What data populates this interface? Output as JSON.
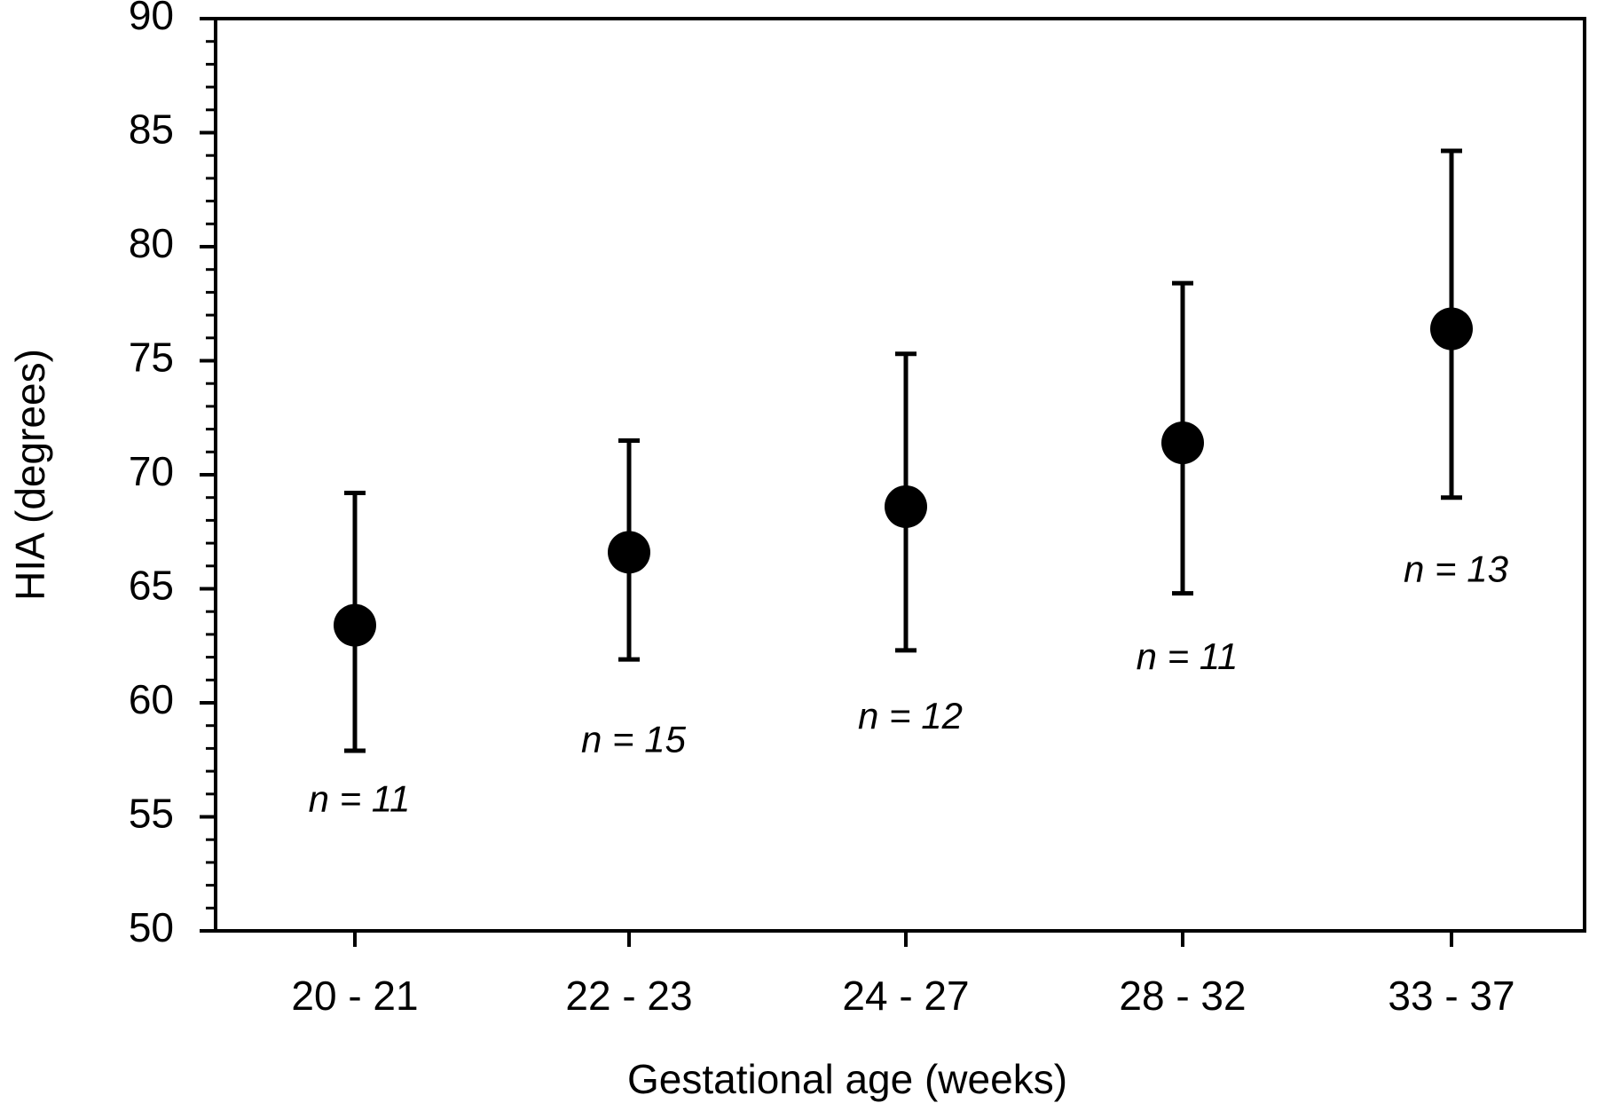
{
  "chart_data": {
    "type": "scatter",
    "title": "",
    "xlabel": "Gestational age (weeks)",
    "ylabel": "HIA  (degrees)",
    "categories": [
      "20 - 21",
      "22 - 23",
      "24 - 27",
      "28 - 32",
      "33 - 37"
    ],
    "series": [
      {
        "values": [
          63.4,
          66.6,
          68.6,
          71.4,
          76.4
        ],
        "error_upper": [
          69.2,
          71.5,
          75.3,
          78.4,
          84.2
        ],
        "error_lower": [
          57.9,
          61.9,
          62.3,
          64.8,
          69.0
        ],
        "annotations": [
          "n = 11",
          "n = 15",
          "n = 12",
          "n = 11",
          "n = 13"
        ]
      }
    ],
    "ylim": [
      50,
      90
    ],
    "yticks": [
      "50",
      "55",
      "60",
      "65",
      "70",
      "75",
      "80",
      "85",
      "90"
    ],
    "y_minor_step": 1,
    "grid": false,
    "legend": "none",
    "colors": {
      "marker": "#000000",
      "axis": "#000000",
      "background": "#ffffff"
    }
  }
}
